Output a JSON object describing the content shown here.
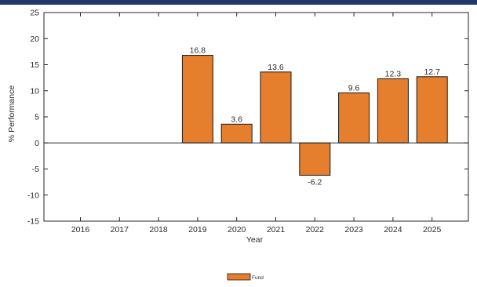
{
  "colors": {
    "bar": "#e57e2d",
    "bar_stroke": "#1a1a1a",
    "top_band": "#24386b"
  },
  "chart_data": {
    "type": "bar",
    "title": "",
    "xlabel": "Year",
    "ylabel": "% Performance",
    "categories": [
      "2016",
      "2017",
      "2018",
      "2019",
      "2020",
      "2021",
      "2022",
      "2023",
      "2024",
      "2025"
    ],
    "series": [
      {
        "name": "Fund",
        "values": [
          null,
          null,
          null,
          16.8,
          3.6,
          13.6,
          -6.2,
          9.6,
          12.3,
          12.7
        ],
        "labels": [
          "",
          "",
          "",
          "16.8",
          "3.6",
          "13.6",
          "-6.2",
          "9.6",
          "12.3",
          "12.7"
        ]
      }
    ],
    "ylim": [
      -15,
      25
    ],
    "yticks": [
      -15,
      -10,
      -5,
      0,
      5,
      10,
      15,
      20,
      25
    ],
    "grid": false,
    "legend_position": "bottom-center"
  }
}
